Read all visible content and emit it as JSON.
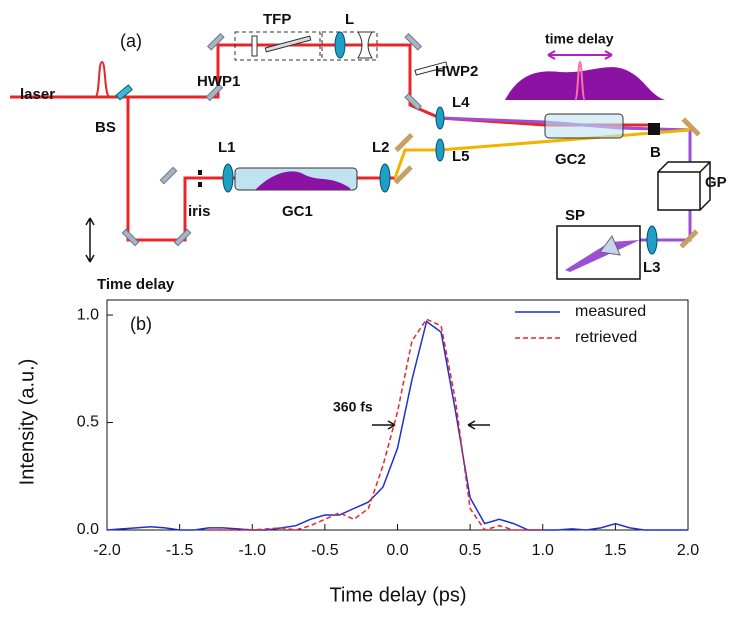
{
  "diagram": {
    "panel_label": "(a)",
    "laser": "laser",
    "bs": "BS",
    "tfp": "TFP",
    "l": "L",
    "hwp1": "HWP1",
    "hwp2": "HWP2",
    "time_delay_top": "time delay",
    "l4": "L4",
    "l5": "L5",
    "l1": "L1",
    "l2": "L2",
    "iris": "iris",
    "gc1": "GC1",
    "gc2": "GC2",
    "b": "B",
    "gp": "GP",
    "sp": "SP",
    "l3": "L3",
    "time_delay": "Time delay"
  },
  "chart_data": {
    "type": "line",
    "panel_label": "(b)",
    "x_label": "Time delay (ps)",
    "y_label": "Intensity (a.u.)",
    "annotation": "360 fs",
    "x": [
      -2.0,
      -1.9,
      -1.8,
      -1.7,
      -1.6,
      -1.5,
      -1.4,
      -1.3,
      -1.2,
      -1.1,
      -1.0,
      -0.9,
      -0.8,
      -0.7,
      -0.6,
      -0.5,
      -0.4,
      -0.3,
      -0.2,
      -0.1,
      0.0,
      0.1,
      0.2,
      0.3,
      0.4,
      0.5,
      0.6,
      0.7,
      0.8,
      0.9,
      1.0,
      1.1,
      1.2,
      1.3,
      1.4,
      1.5,
      1.6,
      1.7,
      1.8,
      1.9,
      2.0
    ],
    "series": [
      {
        "name": "measured",
        "color": "#1f2fd0",
        "dash": false,
        "values": [
          0.0,
          0.005,
          0.01,
          0.015,
          0.01,
          0.0,
          0.0,
          0.01,
          0.01,
          0.005,
          0.0,
          0.0,
          0.01,
          0.02,
          0.05,
          0.07,
          0.07,
          0.1,
          0.13,
          0.2,
          0.38,
          0.7,
          0.97,
          0.92,
          0.55,
          0.15,
          0.03,
          0.05,
          0.03,
          0.0,
          0.0,
          0.0,
          0.005,
          0.0,
          0.01,
          0.03,
          0.01,
          0.0,
          0.0,
          0.0,
          0.0
        ]
      },
      {
        "name": "retrieved",
        "color": "#e8262a",
        "dash": true,
        "values": [
          null,
          null,
          null,
          null,
          null,
          null,
          null,
          0.0,
          0.0,
          0.0,
          0.0,
          0.005,
          0.01,
          0.0,
          0.02,
          0.05,
          0.08,
          0.05,
          0.1,
          0.3,
          0.55,
          0.88,
          0.98,
          0.95,
          0.6,
          0.1,
          0.0,
          0.02,
          0.0,
          0.0,
          0.0,
          null,
          null,
          null,
          null,
          null,
          null,
          null,
          null,
          null,
          null
        ]
      }
    ],
    "xlim": [
      -2.0,
      2.0
    ],
    "xticks": [
      {
        "value": -2.0,
        "label": "-2.0"
      },
      -1.5,
      {
        "value": -1.0,
        "label": "-1.0"
      },
      -0.5,
      {
        "value": 0.0,
        "label": "0.0"
      },
      0.5,
      {
        "value": 1.0,
        "label": "1.0"
      },
      1.5,
      {
        "value": 2.0,
        "label": "2.0"
      }
    ],
    "ylim": [
      0,
      1.07
    ],
    "yticks": [
      {
        "value": 0.0,
        "label": "0.0"
      },
      0.5,
      {
        "value": 1.0,
        "label": "1.0"
      }
    ],
    "legend": "upper right"
  }
}
